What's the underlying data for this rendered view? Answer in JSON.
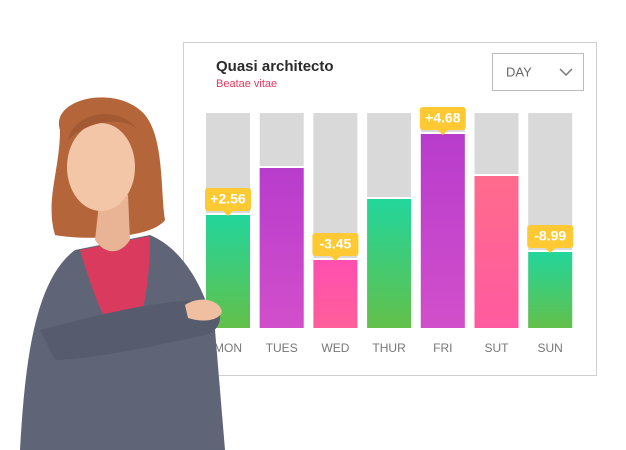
{
  "card": {
    "title": "Quasi architecto",
    "subtitle": "Beatae vitae",
    "dropdown": "DAY",
    "bars": [
      {
        "day": "MON",
        "badge": "+2.56"
      },
      {
        "day": "TUES"
      },
      {
        "day": "WED",
        "badge": "-3.45"
      },
      {
        "day": "THUR"
      },
      {
        "day": "FRI",
        "badge": "+4.68"
      },
      {
        "day": "SUT"
      },
      {
        "day": "SUN",
        "badge": "-8.99"
      }
    ]
  }
}
